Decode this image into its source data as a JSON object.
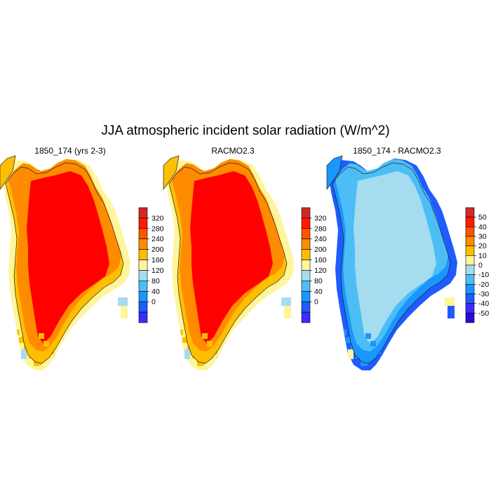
{
  "title": "JJA atmospheric incident solar radiation (W/m^2)",
  "panels": [
    {
      "title": "1850_174 (yrs 2-3)",
      "colorbar": {
        "labels": [
          "320",
          "280",
          "240",
          "200",
          "160",
          "120",
          "80",
          "40",
          "0"
        ],
        "colors": [
          "#d42828",
          "#ff1a00",
          "#ff5500",
          "#ff8c00",
          "#ffbf00",
          "#fff59a",
          "#a6dcf0",
          "#4dbef5",
          "#1a96ff",
          "#1e5cff",
          "#3c2bff"
        ]
      },
      "fill": {
        "interior": "#ff0000",
        "ring": "#ff8c00",
        "edge": "#ffbf00",
        "rim": "#fff59a",
        "spots": "#a6dcf0"
      }
    },
    {
      "title": "RACMO2.3",
      "colorbar": {
        "labels": [
          "320",
          "280",
          "240",
          "200",
          "160",
          "120",
          "80",
          "40",
          "0"
        ],
        "colors": [
          "#d42828",
          "#ff1a00",
          "#ff5500",
          "#ff8c00",
          "#ffbf00",
          "#fff59a",
          "#a6dcf0",
          "#4dbef5",
          "#1a96ff",
          "#1e5cff",
          "#3c2bff"
        ]
      },
      "fill": {
        "interior": "#ff0000",
        "ring": "#ff8c00",
        "edge": "#ffbf00",
        "rim": "#fff59a",
        "spots": "#a6dcf0"
      }
    },
    {
      "title": "1850_174 - RACMO2.3",
      "colorbar": {
        "labels": [
          "50",
          "40",
          "30",
          "20",
          "10",
          "0",
          "-10",
          "-20",
          "-30",
          "-40",
          "-50"
        ],
        "colors": [
          "#d42828",
          "#ff1a00",
          "#ff5500",
          "#ff8c00",
          "#ffbf00",
          "#fff59a",
          "#a6dcf0",
          "#4dbef5",
          "#1a96ff",
          "#1e5cff",
          "#3c2bff",
          "#2a0ad4"
        ]
      },
      "fill": {
        "interior": "#a6dcf0",
        "ring": "#4dbef5",
        "edge": "#1a96ff",
        "rim": "#1e5cff",
        "spots": "#fff59a"
      }
    }
  ]
}
